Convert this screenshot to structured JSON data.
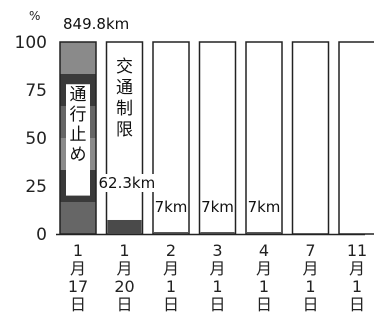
{
  "chart_data": {
    "type": "bar",
    "ylabel": "%",
    "ylim": [
      0,
      100
    ],
    "yticks": [
      0,
      25,
      50,
      75,
      100
    ],
    "categories": [
      "1月17日",
      "1月20日",
      "2月1日",
      "3月1日",
      "4月1日",
      "7月1日",
      "11月1日"
    ],
    "category_lines": [
      [
        "1",
        "月",
        "17",
        "日"
      ],
      [
        "1",
        "月",
        "20",
        "日"
      ],
      [
        "2",
        "月",
        "1",
        "日"
      ],
      [
        "3",
        "月",
        "1",
        "日"
      ],
      [
        "4",
        "月",
        "1",
        "日"
      ],
      [
        "7",
        "月",
        "1",
        "日"
      ],
      [
        "11",
        "月",
        "1",
        "日"
      ]
    ],
    "values": [
      100,
      7.3,
      1,
      1,
      1,
      0,
      0
    ],
    "data_labels": [
      "849.8km",
      "62.3km",
      "7km",
      "7km",
      "7km",
      "",
      ""
    ],
    "annotations": {
      "closed": "通行止め",
      "restricted": "交通制限"
    },
    "grid": false,
    "legend": "none",
    "colors": {
      "bar_outline": "#222222",
      "bar_fill_light": "#8a8a8a",
      "bar_fill_mid": "#666666",
      "bar_fill_dark": "#3a3a3a",
      "restricted_fill": "#4a4a4a",
      "empty_fill": "#ffffff",
      "axis": "#222222"
    }
  }
}
